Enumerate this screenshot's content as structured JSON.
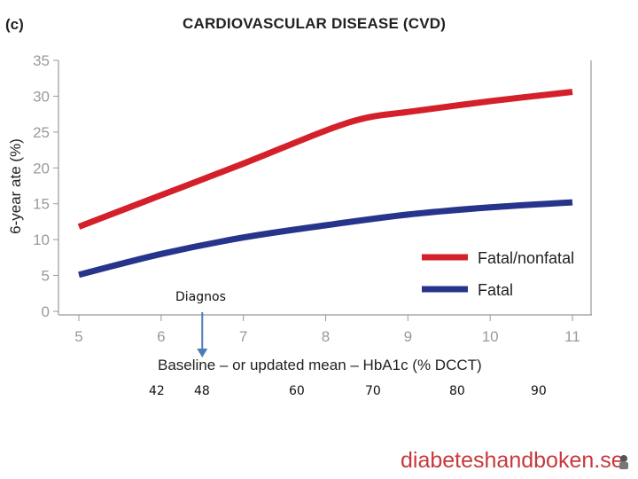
{
  "panel_label": "(c)",
  "title": "CARDIOVASCULAR DISEASE (CVD)",
  "annotation": "Diagnos",
  "watermark": "diabeteshandboken.se",
  "secondary_axis_labels": [
    "42",
    "48",
    "60",
    "70",
    "80",
    "90"
  ],
  "colors": {
    "fatal_nonfatal": "#d3202b",
    "fatal": "#27348b",
    "axis": "#999999",
    "tick_text": "#9a9a9a",
    "arrow": "#4a7db8",
    "watermark": "#c8383c"
  },
  "chart_data": {
    "type": "line",
    "title": "CARDIOVASCULAR DISEASE (CVD)",
    "xlabel": "Baseline – or updated mean – HbA1c (% DCCT)",
    "ylabel": "6-year ate (%)",
    "xlim": [
      5,
      11
    ],
    "ylim": [
      0,
      35
    ],
    "xticks": [
      5,
      6,
      7,
      8,
      9,
      10,
      11
    ],
    "yticks": [
      0,
      5,
      10,
      15,
      20,
      25,
      30,
      35
    ],
    "legend_position": "bottom-right",
    "series": [
      {
        "name": "Fatal/nonfatal",
        "x": [
          5,
          6,
          7,
          8,
          8.5,
          9,
          10,
          11
        ],
        "y": [
          11.8,
          16.2,
          20.6,
          25.2,
          27.0,
          27.8,
          29.3,
          30.6
        ]
      },
      {
        "name": "Fatal",
        "x": [
          5,
          6,
          7,
          8,
          9,
          10,
          11
        ],
        "y": [
          5.1,
          8.0,
          10.3,
          12.0,
          13.5,
          14.5,
          15.2
        ]
      }
    ],
    "annotation_x": 6.5
  }
}
